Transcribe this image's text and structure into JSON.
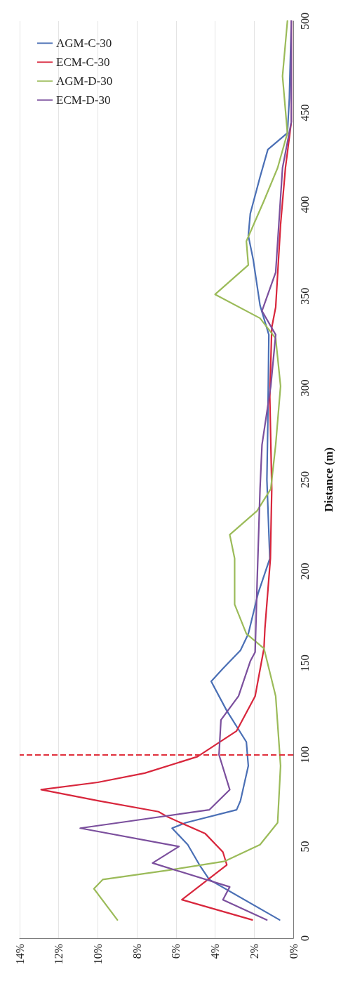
{
  "chart_data": {
    "type": "line",
    "ylabel": "Distance (m)",
    "ylim": [
      0,
      500
    ],
    "yticks": [
      0,
      50,
      100,
      150,
      200,
      250,
      300,
      350,
      400,
      450,
      500
    ],
    "xlim": [
      14,
      0
    ],
    "xticks": [
      {
        "value": 14,
        "label": "14%"
      },
      {
        "value": 12,
        "label": "12%"
      },
      {
        "value": 10,
        "label": "10%"
      },
      {
        "value": 8,
        "label": "8%"
      },
      {
        "value": 6,
        "label": "6%"
      },
      {
        "value": 4,
        "label": "4%"
      },
      {
        "value": 2,
        "label": "2%"
      },
      {
        "value": 0,
        "label": "0%"
      }
    ],
    "grid": "x",
    "legend": "top left",
    "marker": "none",
    "line_style": "solid",
    "ref_lines": [
      {
        "axis": "y",
        "value": 100,
        "color": "#e0303c",
        "line_style": "dashed"
      }
    ],
    "series": [
      {
        "name": "AGM-C-30",
        "color": "#4a6fb5",
        "values": [
          10,
          32,
          40,
          51,
          60,
          63,
          70,
          75,
          94,
          107,
          124,
          140,
          147,
          157,
          166,
          188,
          207,
          250,
          282,
          329,
          345,
          370,
          383,
          395,
          415,
          430,
          439,
          458,
          500
        ],
        "x": [
          0.7,
          4.3,
          4.8,
          5.4,
          6.2,
          5.5,
          2.9,
          2.7,
          2.3,
          2.4,
          3.4,
          4.2,
          3.6,
          2.7,
          2.3,
          1.8,
          1.2,
          1.35,
          1.3,
          1.25,
          1.7,
          2.05,
          2.3,
          2.2,
          1.7,
          1.3,
          0.3,
          0.2,
          0.1
        ]
      },
      {
        "name": "ECM-C-30",
        "color": "#d8263c",
        "values": [
          10,
          21,
          40,
          47,
          57,
          66,
          69,
          75,
          81,
          85,
          90,
          99,
          113,
          132,
          158,
          169,
          207,
          245,
          295,
          333,
          344,
          389,
          420,
          445,
          500
        ],
        "x": [
          2.1,
          5.7,
          3.4,
          3.6,
          4.5,
          6.4,
          6.9,
          10,
          12.9,
          10,
          7.6,
          4.9,
          2.9,
          1.95,
          1.5,
          1.45,
          1.17,
          1.1,
          1.2,
          1.1,
          0.9,
          0.65,
          0.4,
          0.1,
          0.1
        ]
      },
      {
        "name": "AGM-D-30",
        "color": "#9bbb59",
        "values": [
          10,
          27,
          32,
          37,
          42,
          51,
          63,
          94,
          132,
          158,
          166,
          182,
          207,
          220,
          233,
          245,
          269,
          301,
          327,
          338,
          351,
          367,
          380,
          402,
          420,
          439,
          470,
          500
        ],
        "x": [
          9.0,
          10.2,
          9.75,
          6.45,
          3.5,
          1.7,
          0.8,
          0.65,
          0.9,
          1.5,
          2.4,
          3.0,
          3.0,
          3.25,
          1.85,
          1.15,
          0.9,
          0.65,
          0.9,
          1.7,
          4.0,
          2.3,
          2.4,
          1.5,
          0.8,
          0.3,
          0.55,
          0.3
        ]
      },
      {
        "name": "ECM-D-30",
        "color": "#7b4f9d",
        "values": [
          10,
          21,
          28,
          41,
          50,
          60,
          65,
          70,
          81,
          100,
          119,
          132,
          151,
          156,
          194,
          245,
          269,
          301,
          329,
          342,
          363,
          420,
          445,
          500
        ],
        "x": [
          1.35,
          3.6,
          3.25,
          7.2,
          5.85,
          10.9,
          7.6,
          4.3,
          3.25,
          3.8,
          3.7,
          2.8,
          2.2,
          1.95,
          1.85,
          1.7,
          1.6,
          1.15,
          0.9,
          1.6,
          0.9,
          0.55,
          0.1,
          0.1
        ]
      }
    ]
  }
}
